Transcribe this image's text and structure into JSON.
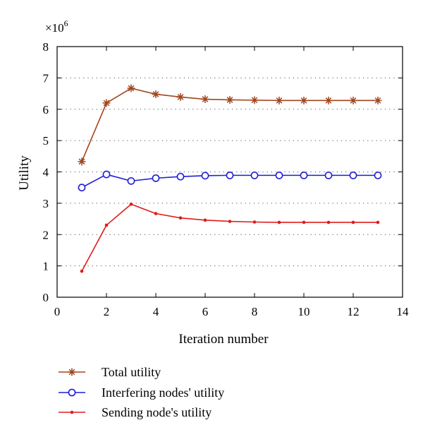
{
  "chart_data": {
    "type": "line",
    "title": "",
    "xlabel": "Iteration number",
    "ylabel": "Utility",
    "y_multiplier": "×10",
    "y_multiplier_exp": "6",
    "xlim": [
      0,
      14
    ],
    "ylim": [
      0,
      8
    ],
    "xticks": [
      0,
      2,
      4,
      6,
      8,
      10,
      12,
      14
    ],
    "yticks": [
      0,
      1,
      2,
      3,
      4,
      5,
      6,
      7,
      8
    ],
    "grid": "horizontal-dotted",
    "legend_position": "below",
    "x": [
      1,
      2,
      3,
      4,
      5,
      6,
      7,
      8,
      9,
      10,
      11,
      12,
      13
    ],
    "series": [
      {
        "name": "Total utility",
        "color": "#a0461e",
        "marker": "star",
        "values": [
          4.33,
          6.2,
          6.67,
          6.48,
          6.39,
          6.32,
          6.3,
          6.29,
          6.28,
          6.28,
          6.28,
          6.28,
          6.28
        ]
      },
      {
        "name": "Interfering nodes' utility",
        "color": "#1f1fd6",
        "marker": "circle",
        "values": [
          3.5,
          3.92,
          3.71,
          3.8,
          3.85,
          3.88,
          3.89,
          3.89,
          3.89,
          3.89,
          3.89,
          3.89,
          3.89
        ]
      },
      {
        "name": "Sending node's utility",
        "color": "#e01b1b",
        "marker": "dot",
        "values": [
          0.83,
          2.3,
          2.97,
          2.67,
          2.53,
          2.46,
          2.42,
          2.4,
          2.39,
          2.39,
          2.39,
          2.39,
          2.39
        ]
      }
    ]
  }
}
